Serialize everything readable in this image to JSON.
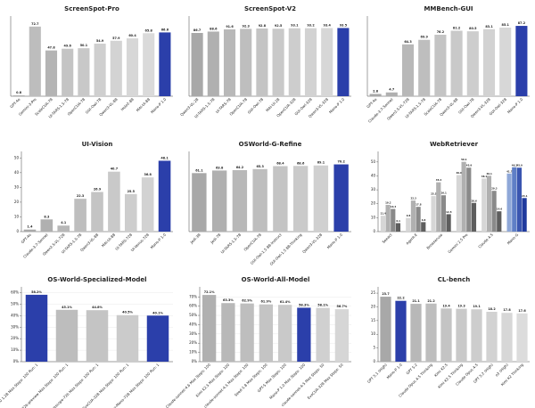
{
  "chart_data": [
    {
      "type": "bar",
      "title": "ScreenSpot-Pro",
      "categories": [
        "GPT-4o",
        "Gemini-3-Pro",
        "ScaleCUA-7B",
        "UI-TARS-1.5-7B",
        "OpenCUA-7B",
        "GUI-Owl-7B",
        "Qwen3-VL-8B",
        "Holo2-8B",
        "MAI-UI-8B",
        "Mano-P 1.0"
      ],
      "values": [
        0.8,
        72.7,
        47.8,
        49.6,
        50.1,
        54.9,
        57.9,
        60.4,
        65.8,
        66.6
      ],
      "colors": [
        "#a8a8a8",
        "#bdbdbd",
        "#b4b4b4",
        "#c4c4c4",
        "#c8c8c8",
        "#cfcfcf",
        "#d3d3d3",
        "#d7d7d7",
        "#dadada",
        "#2b3faa"
      ],
      "ylim": [
        0,
        80
      ]
    },
    {
      "type": "bar",
      "title": "ScreenSpot-V2",
      "categories": [
        "Qwen3-VL-2B",
        "UI-TARS-1.5-7B",
        "UI-TARS-7B",
        "OpenCUA-7B",
        "GUI-Owl-7B",
        "MAI-UI-2B",
        "OpenCUA-32B",
        "GUI-Owl-32B",
        "Qwen3-VL-32B",
        "Mano-P 1.0"
      ],
      "values": [
        86.7,
        88.6,
        91.6,
        92.3,
        92.8,
        92.5,
        93.1,
        93.2,
        93.4,
        93.5
      ],
      "colors": [
        "#a8a8a8",
        "#b0b0b0",
        "#b8b8b8",
        "#bebebe",
        "#c4c4c4",
        "#c9c9c9",
        "#cdcdcd",
        "#d2d2d2",
        "#d7d7d7",
        "#2b3faa"
      ],
      "ylim": [
        0,
        105
      ]
    },
    {
      "type": "bar",
      "title": "MMBench-GUI",
      "categories": [
        "GPT-4o",
        "Claude-3.7-Sonnet",
        "Qwen2.5-VL-72B",
        "UI-TARS-1.5-7B",
        "ScaleCUA-7B",
        "Qwen3-VL-8B",
        "GUI-Owl-7B",
        "Qwen3-VL-32B",
        "GUI-Owl-32B",
        "Mano-P 1.0"
      ],
      "values": [
        2.8,
        4.7,
        64.3,
        69.9,
        76.2,
        81.2,
        80.5,
        83.1,
        85.1,
        87.2
      ],
      "colors": [
        "#a8a8a8",
        "#b0b0b0",
        "#b8b8b8",
        "#bebebe",
        "#c4c4c4",
        "#c9c9c9",
        "#cdcdcd",
        "#d2d2d2",
        "#d7d7d7",
        "#2b3faa"
      ],
      "ylim": [
        0,
        95
      ]
    },
    {
      "type": "bar",
      "title": "UI-Vision",
      "categories": [
        "GPT-4o",
        "Claude-3.7-Sonnet",
        "Qwen2.5-VL-72B",
        "UI-TARS-1.5-7B",
        "Qwen3-VL-8B",
        "MAI-UI-8B",
        "UI-TARS-72B",
        "UI-Venus-72B",
        "Mano-P 1.0"
      ],
      "values": [
        1.4,
        8.3,
        4.1,
        22.3,
        26.9,
        40.7,
        25.5,
        36.8,
        48.1
      ],
      "colors": [
        "#a8a8a8",
        "#b0b0b0",
        "#b8b8b8",
        "#bebebe",
        "#c4c4c4",
        "#c9c9c9",
        "#cdcdcd",
        "#d2d2d2",
        "#2b3faa"
      ],
      "ylim": [
        0,
        52
      ],
      "yticks": [
        0,
        10,
        20,
        30,
        40,
        50
      ]
    },
    {
      "type": "bar",
      "title": "OSWorld-G-Refine",
      "categories": [
        "Jedi-3B",
        "Jedi-7B",
        "UI-TARS-1.5-7B",
        "OpenCUA-7B",
        "GUI-Owl-1.5 8B-Instruct",
        "GUI-Owl-1.5 8B-Thinking",
        "Qwen3-VL-32B",
        "Mano-P 1.0"
      ],
      "values": [
        61.1,
        63.8,
        64.2,
        65.3,
        68.4,
        68.6,
        69.1,
        70.2
      ],
      "colors": [
        "#a8a8a8",
        "#b0b0b0",
        "#b8b8b8",
        "#bebebe",
        "#c4c4c4",
        "#cacaca",
        "#d0d0d0",
        "#2b3faa"
      ],
      "ylim": [
        0,
        80
      ]
    },
    {
      "type": "grouped_bar",
      "title": "WebRetriever",
      "categories": [
        "Seeact",
        "Agent-E",
        "Browseruse",
        "Gemini 2.5 Pro",
        "Claude 4.5",
        "Mano-G"
      ],
      "series": [
        {
          "colors": [
            "#d6d6d6",
            "#d6d6d6",
            "#d6d6d6",
            "#d6d6d6",
            "#d6d6d6",
            "#8fa8d8"
          ],
          "values": [
            11.4,
            9.8,
            25.5,
            40.6,
            38.1,
            41.7
          ]
        },
        {
          "colors": [
            "#b0b0b0",
            "#b0b0b0",
            "#b0b0b0",
            "#b0b0b0",
            "#b0b0b0",
            "#5f7fc6"
          ],
          "values": [
            19.2,
            22.3,
            35.4,
            50.1,
            40.1,
            46.2
          ]
        },
        {
          "colors": [
            "#8a8a8a",
            "#8a8a8a",
            "#8a8a8a",
            "#8a8a8a",
            "#8a8a8a",
            "#3a56b0"
          ],
          "values": [
            16.3,
            17.8,
            26.1,
            45.9,
            29.3,
            45.9
          ]
        },
        {
          "colors": [
            "#5e5e5e",
            "#5e5e5e",
            "#5e5e5e",
            "#5e5e5e",
            "#5e5e5e",
            "#1f3a9e"
          ],
          "values": [
            6.1,
            6.8,
            12.5,
            20.6,
            14.6,
            24.1
          ]
        }
      ],
      "ylim": [
        0,
        55
      ],
      "yticks": [
        0,
        10,
        20,
        30,
        40,
        50
      ]
    },
    {
      "type": "bar",
      "title": "OS-World-Specialized-Model",
      "categories": [
        "Mano-P 1.0 1.2B Max Steps: 100 Run: 1",
        "opencua-72b-preview Max Steps: 100 Run: 1",
        "agentscope-72b Max Steps: 100 Run: 1",
        "EvoCUA-32B Max Steps: 100 Run: 1",
        "DeepMiner-Mano-72B Max Steps: 100 Run: 1"
      ],
      "values": [
        58.2,
        45.1,
        44.8,
        40.5,
        40.1
      ],
      "value_labels": [
        "58.2%",
        "45.1%",
        "44.8%",
        "40.5%",
        "40.1%"
      ],
      "colors": [
        "#2b3faa",
        "#bdbdbd",
        "#c4c4c4",
        "#cbcbcb",
        "#2b3faa"
      ],
      "ylim": [
        0,
        62
      ],
      "grid": true,
      "yticks": [
        {
          "value": 0,
          "label": "0%"
        },
        {
          "value": 10,
          "label": "10%"
        },
        {
          "value": 20,
          "label": "20%"
        },
        {
          "value": 30,
          "label": "30%"
        },
        {
          "value": 40,
          "label": "40%"
        },
        {
          "value": 50,
          "label": "50%"
        },
        {
          "value": 60,
          "label": "60%"
        }
      ]
    },
    {
      "type": "bar",
      "title": "OS-World-All-Model",
      "categories": [
        "Claude-sonnet-4.6 Max Steps: 100",
        "Kimi K2.5 Max Steps: 100",
        "claude-sonnet-4.5 Max Steps: 100",
        "Seed-1.8 Max Steps: 100",
        "GPT-5 Max Steps: 100",
        "Mano-P 1.0 Max Steps: 100",
        "claude-sonnet-4-5 Max Steps: 50",
        "EvoCUA-32B Max Steps: 50"
      ],
      "values": [
        72.1,
        63.3,
        62.9,
        61.9,
        61.4,
        58.3,
        58.1,
        56.7
      ],
      "value_labels": [
        "72.1%",
        "63.3%",
        "62.9%",
        "61.9%",
        "61.4%",
        "58.3%",
        "58.1%",
        "56.7%"
      ],
      "colors": [
        "#b0b0b0",
        "#b8b8b8",
        "#bebebe",
        "#c4c4c4",
        "#c9c9c9",
        "#2b3faa",
        "#d0d0d0",
        "#d6d6d6"
      ],
      "ylim": [
        0,
        77
      ],
      "grid": true,
      "yticks": [
        {
          "value": 0,
          "label": "0%"
        },
        {
          "value": 10,
          "label": "10%"
        },
        {
          "value": 20,
          "label": "20%"
        },
        {
          "value": 30,
          "label": "30%"
        },
        {
          "value": 40,
          "label": "40%"
        },
        {
          "value": 50,
          "label": "50%"
        },
        {
          "value": 60,
          "label": "60%"
        },
        {
          "value": 70,
          "label": "70%"
        }
      ]
    },
    {
      "type": "bar",
      "title": "CL-bench",
      "categories": [
        "GPT 5.1 (High)",
        "Mano-P 1.0",
        "GPT 5.2",
        "Claude Opus 4.5 Thinking",
        "Kimi K2.5",
        "Kimi K2.5 Thinking",
        "Claude Opus 4.5",
        "GPT 5.2 (High)",
        "o3 (High)",
        "Kimi K2 Thinking"
      ],
      "values": [
        23.7,
        22.2,
        21.1,
        21.2,
        19.4,
        19.3,
        19.1,
        18.2,
        17.8,
        17.6
      ],
      "colors": [
        "#a8a8a8",
        "#2b3faa",
        "#b8b8b8",
        "#bebebe",
        "#c4c4c4",
        "#c9c9c9",
        "#cdcdcd",
        "#d2d2d2",
        "#d7d7d7",
        "#dcdcdc"
      ],
      "ylim": [
        0,
        26
      ],
      "yticks": [
        0,
        5,
        10,
        15,
        20,
        25
      ]
    }
  ]
}
